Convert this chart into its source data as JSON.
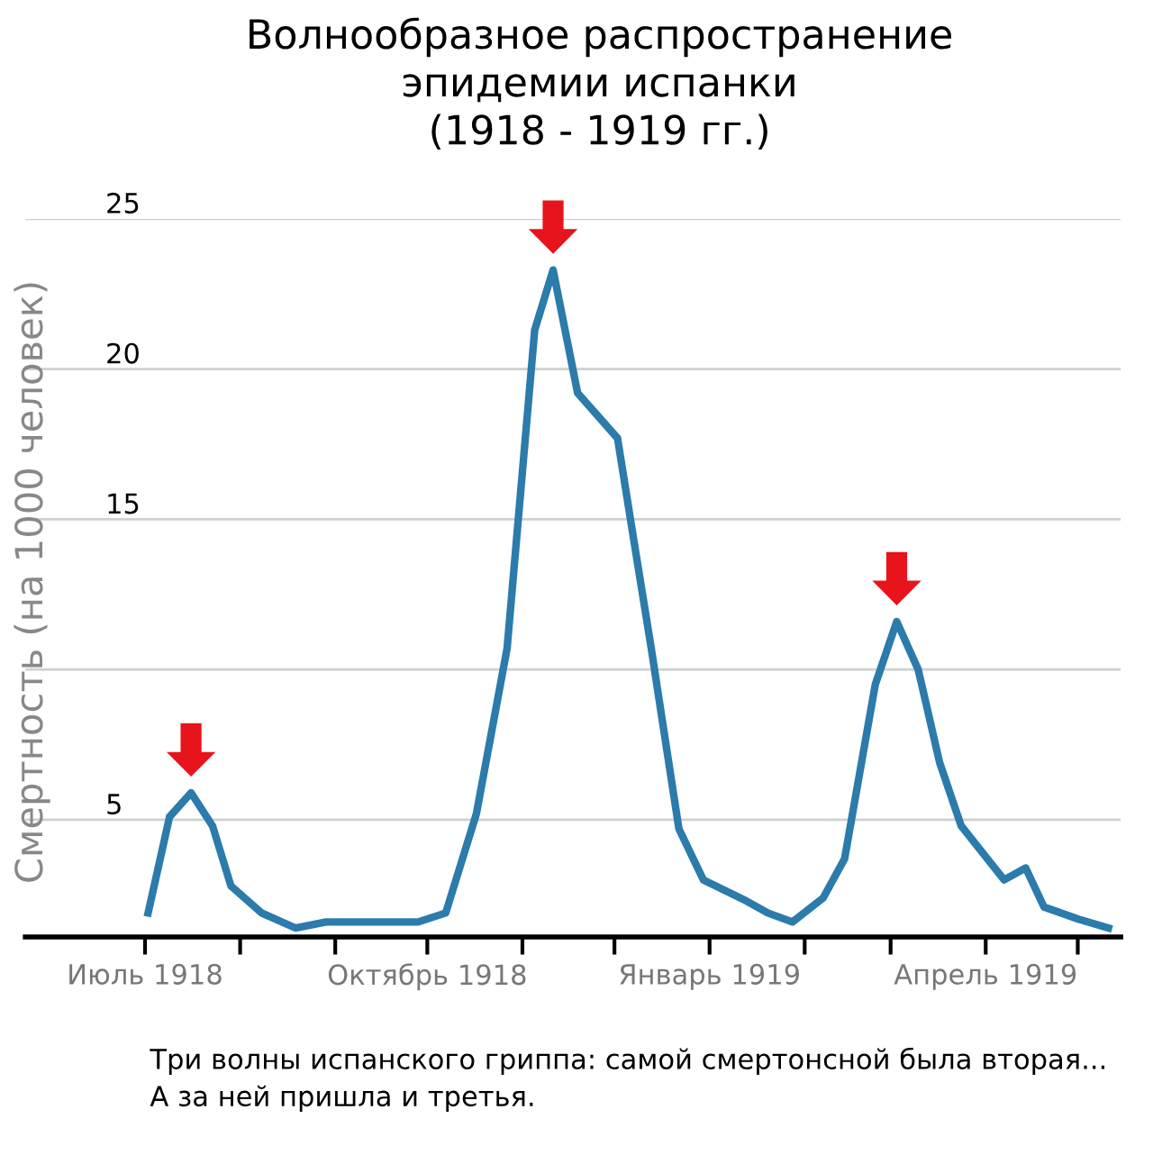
{
  "chart_data": {
    "type": "line",
    "title": "Волнообразное распространение\nэпидемии испанки\n(1918 - 1919 гг.)",
    "ylabel": "Смертность (на 1000 человек)",
    "x": [
      "1918-07-02",
      "1918-07-09",
      "1918-07-16",
      "1918-07-23",
      "1918-07-29",
      "1918-08-08",
      "1918-08-19",
      "1918-08-29",
      "1918-09-28",
      "1918-10-07",
      "1918-10-17",
      "1918-10-27",
      "1918-11-05",
      "1918-11-11",
      "1918-11-19",
      "1918-12-02",
      "1918-12-07",
      "1918-12-13",
      "1918-12-22",
      "1918-12-30",
      "1919-01-13",
      "1919-01-20",
      "1919-01-28",
      "1919-02-07",
      "1919-02-14",
      "1919-02-24",
      "1919-03-03",
      "1919-03-10",
      "1919-03-17",
      "1919-03-24",
      "1919-04-07",
      "1919-04-14",
      "1919-04-20",
      "1919-05-01",
      "1919-05-11"
    ],
    "series": [
      {
        "color": "#2b7bab",
        "values": [
          1.9,
          5.1,
          5.9,
          4.8,
          2.8,
          1.9,
          1.4,
          1.6,
          1.6,
          1.9,
          5.2,
          10.7,
          21.3,
          23.3,
          19.2,
          17.7,
          14.5,
          10.7,
          4.7,
          3.0,
          2.3,
          1.9,
          1.6,
          2.4,
          3.7,
          9.5,
          11.6,
          10.0,
          6.9,
          4.8,
          3.0,
          3.4,
          2.1,
          1.7,
          1.4
        ]
      }
    ],
    "xlim": [
      "1918-05-23",
      "1919-05-15"
    ],
    "xticks": [
      {
        "value": "1918-07-01",
        "label": "Июль 1918"
      },
      {
        "value": "1918-08-01",
        "label": null
      },
      {
        "value": "1918-09-01",
        "label": null
      },
      {
        "value": "1918-10-01",
        "label": "Октябрь 1918"
      },
      {
        "value": "1918-11-01",
        "label": null
      },
      {
        "value": "1918-12-01",
        "label": null
      },
      {
        "value": "1919-01-01",
        "label": "Январь 1919"
      },
      {
        "value": "1919-02-01",
        "label": null
      },
      {
        "value": "1919-03-01",
        "label": null
      },
      {
        "value": "1919-04-01",
        "label": "Апрель 1919"
      },
      {
        "value": "1919-05-01",
        "label": null
      }
    ],
    "ylim": [
      1.1,
      25
    ],
    "yticks": [
      5,
      {
        "value": 10,
        "label": null
      },
      15,
      20,
      25
    ],
    "grid": "y",
    "line_style": "solid",
    "annotations": [
      "Три волны испанского гриппа: самой смертонсной была вторая...\nА за ней пришла и третья."
    ]
  }
}
